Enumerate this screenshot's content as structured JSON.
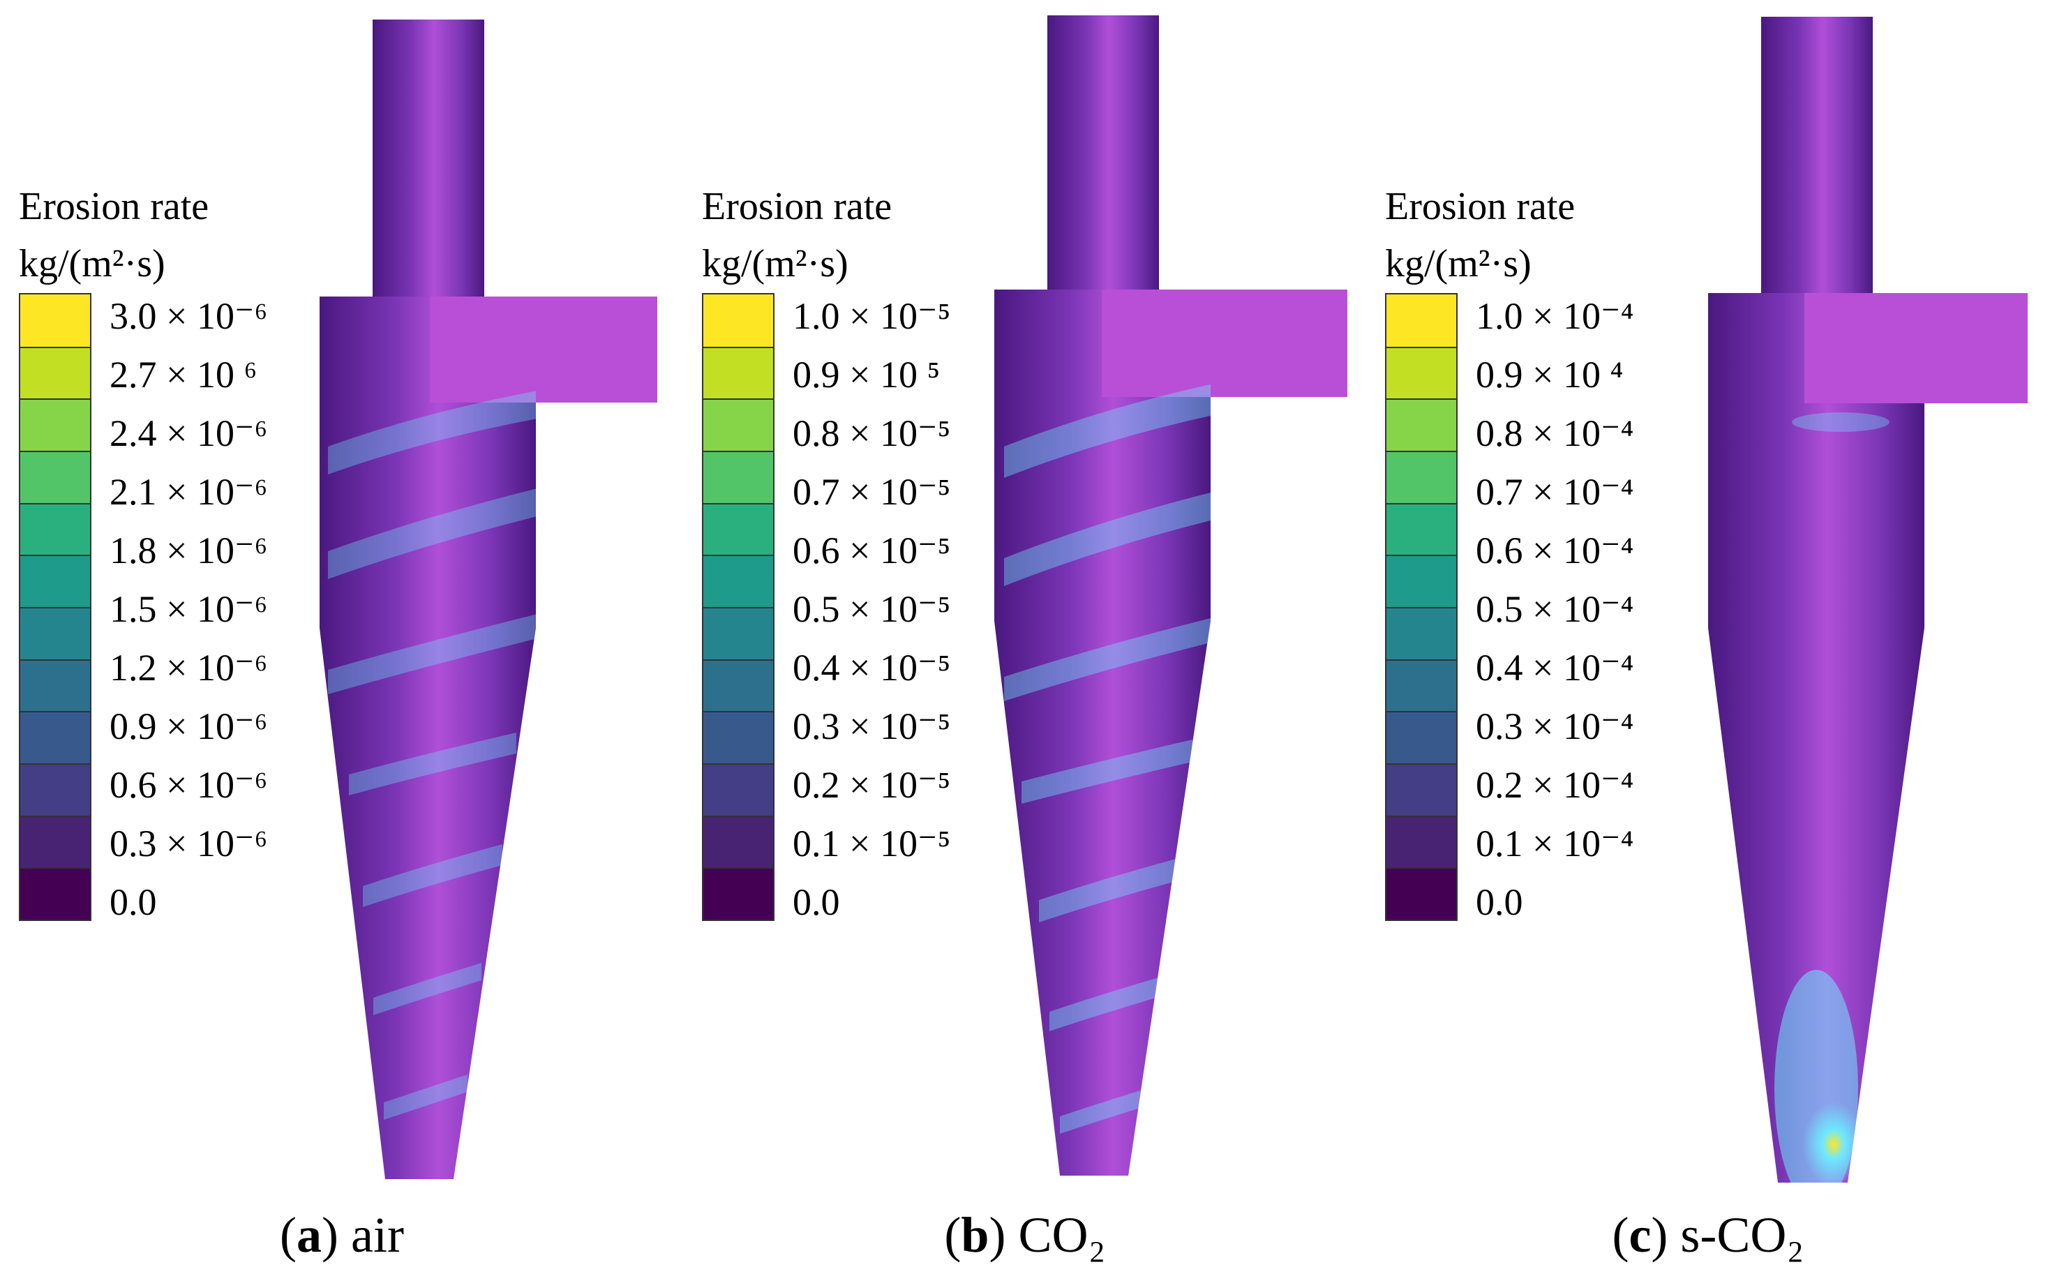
{
  "legend": {
    "title": "Erosion rate",
    "unit": "kg/(m²·s)"
  },
  "colorscale": [
    "#440154",
    "#482273",
    "#433e85",
    "#38598c",
    "#2d708e",
    "#25858e",
    "#1e9b8a",
    "#2ab07f",
    "#52c569",
    "#86d549",
    "#c2df23",
    "#fde725"
  ],
  "surface": {
    "base": "#6b2ca0",
    "highlight": "#c455e0",
    "inlet": "#b94fd6",
    "hotspot": "#6ee8ff"
  },
  "panels": [
    {
      "caption_label": "a",
      "caption_text": "air",
      "ticks": [
        "3.0 × 10⁻⁶",
        "2.7 × 10 ⁶",
        "2.4 × 10⁻⁶",
        "2.1 × 10⁻⁶",
        "1.8 × 10⁻⁶",
        "1.5 × 10⁻⁶",
        "1.2 × 10⁻⁶",
        "0.9 × 10⁻⁶",
        "0.6 × 10⁻⁶",
        "0.3 × 10⁻⁶",
        "0.0"
      ]
    },
    {
      "caption_label": "b",
      "caption_text": "CO₂",
      "ticks": [
        "1.0 × 10⁻⁵",
        "0.9 × 10 ⁵",
        "0.8 × 10⁻⁵",
        "0.7 × 10⁻⁵",
        "0.6 × 10⁻⁵",
        "0.5 × 10⁻⁵",
        "0.4 × 10⁻⁵",
        "0.3 × 10⁻⁵",
        "0.2 × 10⁻⁵",
        "0.1 × 10⁻⁵",
        "0.0"
      ]
    },
    {
      "caption_label": "c",
      "caption_text": "s-CO₂",
      "ticks": [
        "1.0 × 10⁻⁴",
        "0.9 × 10 ⁴",
        "0.8 × 10⁻⁴",
        "0.7 × 10⁻⁴",
        "0.6 × 10⁻⁴",
        "0.5 × 10⁻⁴",
        "0.4 × 10⁻⁴",
        "0.3 × 10⁻⁴",
        "0.2 × 10⁻⁴",
        "0.1 × 10⁻⁴",
        "0.0"
      ]
    }
  ]
}
